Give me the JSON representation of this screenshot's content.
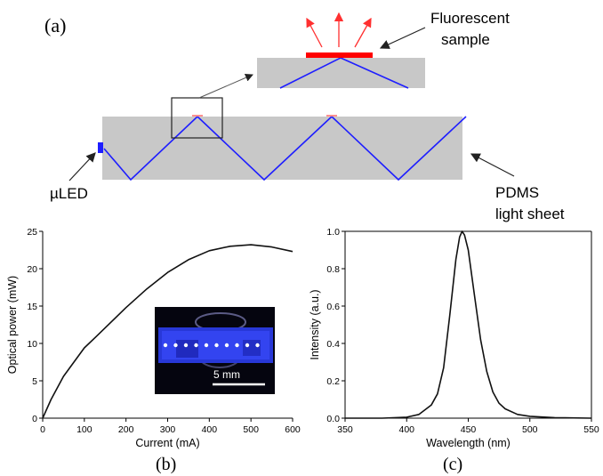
{
  "panel_a": {
    "label": "(a)",
    "fluorescent_sample": [
      "Fluorescent",
      "sample"
    ],
    "uled": "µLED",
    "pdms": [
      "PDMS",
      "light sheet"
    ]
  },
  "panel_b": {
    "label": "(b)",
    "scale_bar": "5 mm"
  },
  "panel_c": {
    "label": "(c)"
  },
  "colors": {
    "sheet": "#c8c8c8",
    "ray": "#1e1eff",
    "sample": "#ff0000",
    "arrow_red": "#ff3030"
  },
  "chart_data": [
    {
      "type": "line",
      "xlabel": "Current (mA)",
      "ylabel": "Optical power (mW)",
      "xlim": [
        0,
        600
      ],
      "ylim": [
        0,
        25
      ],
      "xticks": [
        0,
        100,
        200,
        300,
        400,
        500,
        600
      ],
      "yticks": [
        0,
        5,
        10,
        15,
        20,
        25
      ],
      "x": [
        0,
        20,
        50,
        100,
        130,
        200,
        250,
        300,
        350,
        400,
        450,
        500,
        550,
        600
      ],
      "y": [
        0,
        2.5,
        5.6,
        9.4,
        11.0,
        14.8,
        17.3,
        19.5,
        21.2,
        22.4,
        23.0,
        23.2,
        22.9,
        22.3
      ]
    },
    {
      "type": "line",
      "xlabel": "Wavelength (nm)",
      "ylabel": "Intensity (a.u.)",
      "xlim": [
        350,
        550
      ],
      "ylim": [
        0,
        1.0
      ],
      "xticks": [
        350,
        400,
        450,
        500,
        550
      ],
      "yticks": [
        0.0,
        0.2,
        0.4,
        0.6,
        0.8,
        1.0
      ],
      "x": [
        350,
        380,
        400,
        410,
        420,
        425,
        430,
        435,
        440,
        443,
        445,
        447,
        450,
        455,
        460,
        465,
        470,
        475,
        480,
        490,
        500,
        520,
        550
      ],
      "y": [
        0.0,
        0.0,
        0.005,
        0.02,
        0.07,
        0.13,
        0.27,
        0.55,
        0.85,
        0.97,
        1.0,
        0.98,
        0.9,
        0.66,
        0.42,
        0.25,
        0.14,
        0.08,
        0.05,
        0.02,
        0.01,
        0.003,
        0.0
      ]
    }
  ]
}
